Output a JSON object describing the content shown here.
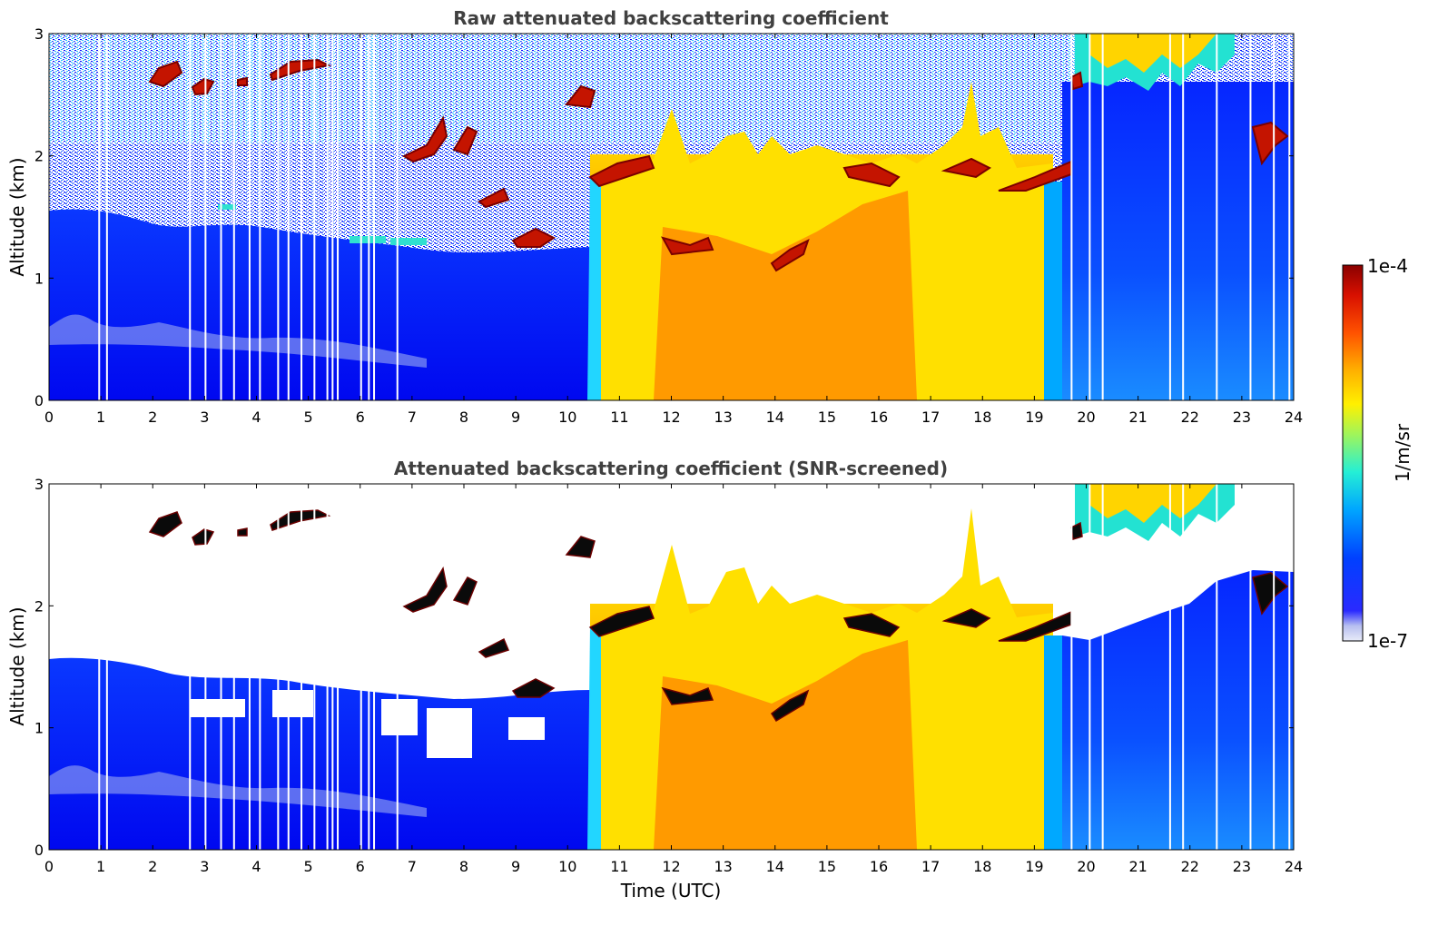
{
  "chart_data": [
    {
      "type": "heatmap",
      "title": "Raw attenuated backscattering coefficient",
      "xlabel": "",
      "ylabel": "Altitude (km)",
      "xlim": [
        0,
        24
      ],
      "ylim": [
        0,
        3
      ],
      "xticks": [
        "0",
        "1",
        "2",
        "3",
        "4",
        "5",
        "6",
        "7",
        "8",
        "9",
        "10",
        "11",
        "12",
        "13",
        "14",
        "15",
        "16",
        "17",
        "18",
        "19",
        "20",
        "21",
        "22",
        "23",
        "24"
      ],
      "yticks": [
        "0",
        "1",
        "2",
        "3"
      ],
      "screening": "none (noise speckle visible above boundary layer)"
    },
    {
      "type": "heatmap",
      "title": "Attenuated backscattering coefficient (SNR-screened)",
      "xlabel": "Time (UTC)",
      "ylabel": "Altitude (km)",
      "xlim": [
        0,
        24
      ],
      "ylim": [
        0,
        3
      ],
      "xticks": [
        "0",
        "1",
        "2",
        "3",
        "4",
        "5",
        "6",
        "7",
        "8",
        "9",
        "10",
        "11",
        "12",
        "13",
        "14",
        "15",
        "16",
        "17",
        "18",
        "19",
        "20",
        "21",
        "22",
        "23",
        "24"
      ],
      "yticks": [
        "0",
        "1",
        "2",
        "3"
      ],
      "screening": "low-SNR pixels masked (white); saturated cloud returns shown black"
    }
  ],
  "colorbar": {
    "label": "1/m/sr",
    "max_label": "1e-4",
    "min_label": "1e-7",
    "scale": "log",
    "colormap": [
      "#e0e4f6",
      "#b4bcf0",
      "#0000ff",
      "#0a5cff",
      "#00b4ff",
      "#2ff5d0",
      "#a6f553",
      "#ffee00",
      "#ffb000",
      "#ff5a00",
      "#e01000",
      "#9a0000"
    ]
  },
  "features": {
    "boundary_layer_top_km": 1.55,
    "residual_layer_km": 0.6,
    "day_convective_start_utc": 10.5,
    "day_convective_end_utc": 19.4,
    "cloud_base_day_km": [
      1.2,
      2.0
    ],
    "late_cloud_layer_start_utc": 19.8,
    "late_cloud_layer_altitude_km": [
      2.6,
      3.0
    ]
  }
}
